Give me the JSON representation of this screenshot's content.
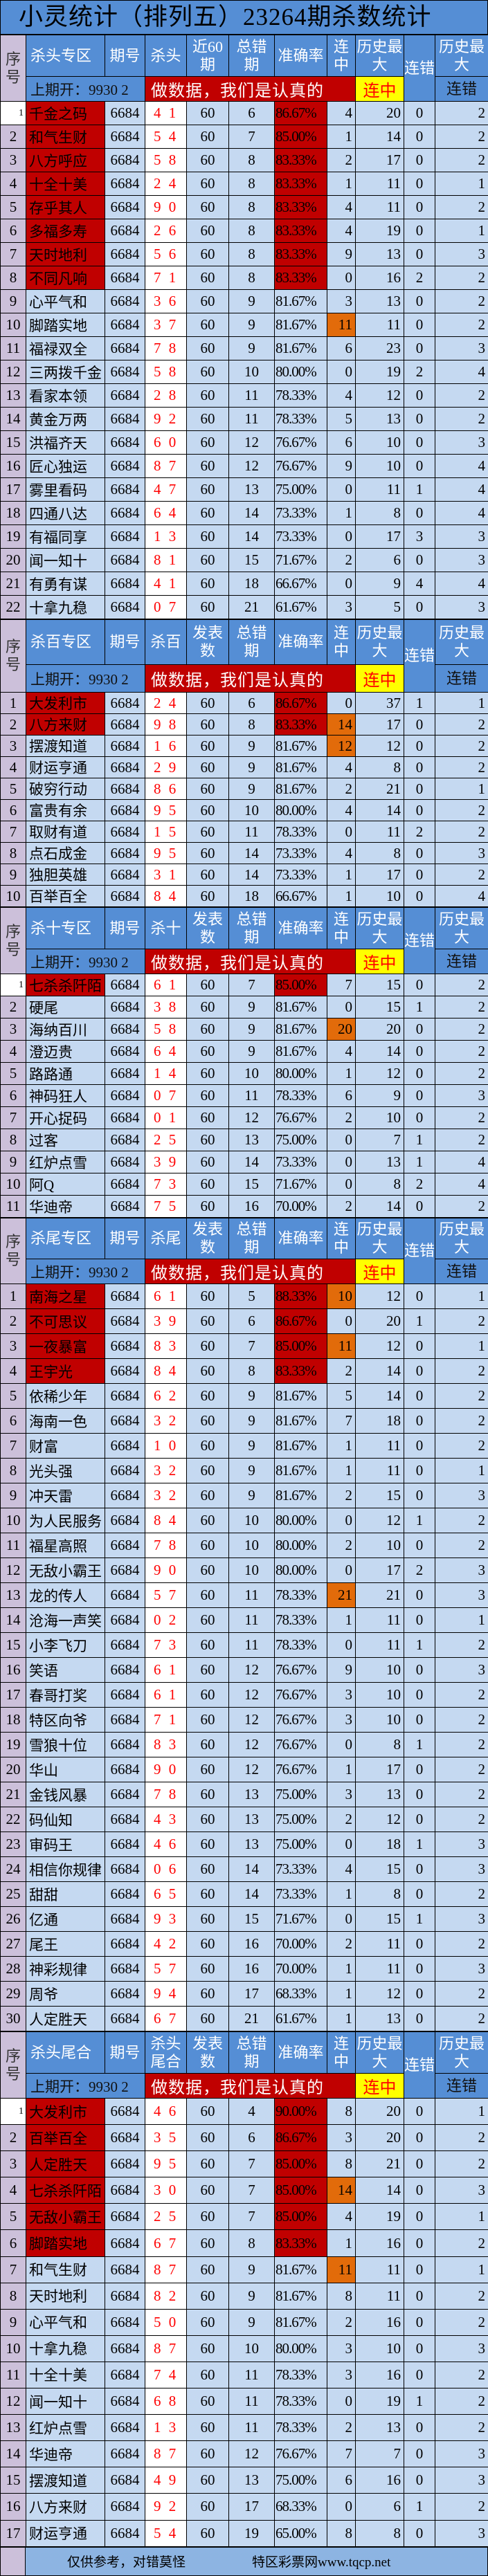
{
  "title": "小灵统计（排列五）23264期杀数统计",
  "colors": {
    "header": "#558ED5",
    "seq": "#CCC0DA",
    "cell": "#C5D9F1",
    "top": "#C00000",
    "streak": "#E26B0A",
    "badge": "#FFFF00",
    "footer": "#8DB4E2"
  },
  "common": {
    "seq_label": "序号",
    "issue_label": "期号",
    "errors_label": "总错期",
    "accuracy_label": "准确率",
    "streak_label": "连中",
    "history_max_label": "历史最大",
    "miss_label": "连错",
    "prev_draw": "上期开：9930 2",
    "banner": "做数据，我们是认真的",
    "badge": "连中",
    "miss_max_sub": "连错"
  },
  "sections": [
    {
      "title": "杀头专区",
      "kill_label": "杀头",
      "count_label": "近60期",
      "hot_rows": [
        10
      ],
      "rows": [
        [
          "1",
          "千金之码",
          "6684",
          "4 1",
          "60",
          "6",
          "86.67%",
          "4",
          "20",
          "0",
          "2"
        ],
        [
          "2",
          "和气生财",
          "6684",
          "5 4",
          "60",
          "7",
          "85.00%",
          "1",
          "14",
          "0",
          "2"
        ],
        [
          "3",
          "八方呼应",
          "6684",
          "5 8",
          "60",
          "8",
          "83.33%",
          "2",
          "17",
          "0",
          "2"
        ],
        [
          "4",
          "十全十美",
          "6684",
          "2 4",
          "60",
          "8",
          "83.33%",
          "1",
          "11",
          "0",
          "1"
        ],
        [
          "5",
          "存乎其人",
          "6684",
          "9 0",
          "60",
          "8",
          "83.33%",
          "4",
          "11",
          "0",
          "2"
        ],
        [
          "6",
          "多福多寿",
          "6684",
          "2 6",
          "60",
          "8",
          "83.33%",
          "4",
          "19",
          "0",
          "1"
        ],
        [
          "7",
          "天时地利",
          "6684",
          "5 6",
          "60",
          "8",
          "83.33%",
          "9",
          "13",
          "0",
          "3"
        ],
        [
          "8",
          "不同凡响",
          "6684",
          "7 1",
          "60",
          "8",
          "83.33%",
          "0",
          "16",
          "2",
          "2"
        ],
        [
          "9",
          "心平气和",
          "6684",
          "3 6",
          "60",
          "9",
          "81.67%",
          "3",
          "13",
          "0",
          "2"
        ],
        [
          "10",
          "脚踏实地",
          "6684",
          "3 7",
          "60",
          "9",
          "81.67%",
          "11",
          "11",
          "0",
          "2"
        ],
        [
          "11",
          "福禄双全",
          "6684",
          "7 8",
          "60",
          "9",
          "81.67%",
          "6",
          "23",
          "0",
          "3"
        ],
        [
          "12",
          "三两拨千金",
          "6684",
          "5 8",
          "60",
          "10",
          "80.00%",
          "0",
          "19",
          "2",
          "4"
        ],
        [
          "13",
          "看家本领",
          "6684",
          "2 8",
          "60",
          "11",
          "78.33%",
          "4",
          "12",
          "0",
          "2"
        ],
        [
          "14",
          "黄金万两",
          "6684",
          "9 2",
          "60",
          "11",
          "78.33%",
          "5",
          "13",
          "0",
          "2"
        ],
        [
          "15",
          "洪福齐天",
          "6684",
          "6 0",
          "60",
          "12",
          "76.67%",
          "6",
          "10",
          "0",
          "3"
        ],
        [
          "16",
          "匠心独运",
          "6684",
          "8 7",
          "60",
          "12",
          "76.67%",
          "9",
          "10",
          "0",
          "4"
        ],
        [
          "17",
          "雾里看码",
          "6684",
          "4 7",
          "60",
          "13",
          "75.00%",
          "0",
          "11",
          "1",
          "4"
        ],
        [
          "18",
          "四通八达",
          "6684",
          "6 4",
          "60",
          "14",
          "73.33%",
          "1",
          "8",
          "0",
          "4"
        ],
        [
          "19",
          "有福同享",
          "6684",
          "1 3",
          "60",
          "14",
          "73.33%",
          "0",
          "17",
          "3",
          "3"
        ],
        [
          "20",
          "闻一知十",
          "6684",
          "8 1",
          "60",
          "15",
          "71.67%",
          "2",
          "6",
          "0",
          "3"
        ],
        [
          "21",
          "有勇有谋",
          "6684",
          "4 1",
          "60",
          "18",
          "66.67%",
          "0",
          "9",
          "4",
          "4"
        ],
        [
          "22",
          "十拿九稳",
          "6684",
          "0 7",
          "60",
          "21",
          "61.67%",
          "3",
          "5",
          "0",
          "3"
        ]
      ]
    },
    {
      "title": "杀百专区",
      "kill_label": "杀百",
      "count_label": "发表数",
      "hot_rows": [
        2,
        3
      ],
      "rows": [
        [
          "1",
          "大发利市",
          "6684",
          "2 4",
          "60",
          "6",
          "86.67%",
          "0",
          "37",
          "1",
          "1"
        ],
        [
          "2",
          "八方来财",
          "6684",
          "9 8",
          "60",
          "8",
          "83.33%",
          "14",
          "17",
          "0",
          "2"
        ],
        [
          "3",
          "摆渡知道",
          "6684",
          "1 6",
          "60",
          "9",
          "81.67%",
          "12",
          "12",
          "0",
          "2"
        ],
        [
          "4",
          "财运亨通",
          "6684",
          "2 9",
          "60",
          "9",
          "81.67%",
          "4",
          "8",
          "0",
          "2"
        ],
        [
          "5",
          "破穷行动",
          "6684",
          "8 6",
          "60",
          "9",
          "81.67%",
          "2",
          "21",
          "0",
          "1"
        ],
        [
          "6",
          "富贵有余",
          "6684",
          "9 5",
          "60",
          "10",
          "80.00%",
          "4",
          "14",
          "0",
          "2"
        ],
        [
          "7",
          "取财有道",
          "6684",
          "1 5",
          "60",
          "11",
          "78.33%",
          "0",
          "11",
          "2",
          "2"
        ],
        [
          "8",
          "点石成金",
          "6684",
          "9 5",
          "60",
          "14",
          "73.33%",
          "4",
          "8",
          "0",
          "3"
        ],
        [
          "9",
          "独胆英雄",
          "6684",
          "3 1",
          "60",
          "14",
          "73.33%",
          "1",
          "17",
          "0",
          "2"
        ],
        [
          "10",
          "百举百全",
          "6684",
          "8 4",
          "60",
          "18",
          "66.67%",
          "1",
          "10",
          "0",
          "4"
        ]
      ]
    },
    {
      "title": "杀十专区",
      "kill_label": "杀十",
      "count_label": "发表数",
      "hot_rows": [
        3
      ],
      "rows": [
        [
          "1",
          "七杀杀阡陌",
          "6684",
          "6 1",
          "60",
          "7",
          "85.00%",
          "7",
          "15",
          "0",
          "2"
        ],
        [
          "2",
          "硬尾",
          "6684",
          "3 8",
          "60",
          "9",
          "81.67%",
          "0",
          "15",
          "1",
          "2"
        ],
        [
          "3",
          "海纳百川",
          "6684",
          "5 8",
          "60",
          "9",
          "81.67%",
          "20",
          "20",
          "0",
          "2"
        ],
        [
          "4",
          "澄迈贵",
          "6684",
          "6 4",
          "60",
          "9",
          "81.67%",
          "4",
          "14",
          "0",
          "2"
        ],
        [
          "5",
          "路路通",
          "6684",
          "1 4",
          "60",
          "10",
          "80.00%",
          "1",
          "12",
          "0",
          "2"
        ],
        [
          "6",
          "神码狂人",
          "6684",
          "0 7",
          "60",
          "11",
          "78.33%",
          "6",
          "9",
          "0",
          "3"
        ],
        [
          "7",
          "开心捉码",
          "6684",
          "0 1",
          "60",
          "12",
          "76.67%",
          "2",
          "10",
          "0",
          "2"
        ],
        [
          "8",
          "过客",
          "6684",
          "2 5",
          "60",
          "13",
          "75.00%",
          "0",
          "7",
          "1",
          "2"
        ],
        [
          "9",
          "红炉点雪",
          "6684",
          "3 9",
          "60",
          "14",
          "73.33%",
          "0",
          "13",
          "1",
          "4"
        ],
        [
          "10",
          "阿Q",
          "6684",
          "7 3",
          "60",
          "15",
          "71.67%",
          "0",
          "8",
          "2",
          "4"
        ],
        [
          "11",
          "华迪帝",
          "6684",
          "7 5",
          "60",
          "16",
          "70.00%",
          "2",
          "14",
          "0",
          "2"
        ]
      ]
    },
    {
      "title": "杀尾专区",
      "kill_label": "杀尾",
      "count_label": "发表数",
      "hot_rows": [
        1,
        3,
        13
      ],
      "rows": [
        [
          "1",
          "南海之星",
          "6684",
          "6 1",
          "60",
          "5",
          "88.33%",
          "10",
          "12",
          "0",
          "1"
        ],
        [
          "2",
          "不可思议",
          "6684",
          "3 9",
          "60",
          "6",
          "86.67%",
          "0",
          "20",
          "1",
          "2"
        ],
        [
          "3",
          "一夜暴富",
          "6684",
          "8 3",
          "60",
          "7",
          "85.00%",
          "11",
          "12",
          "0",
          "1"
        ],
        [
          "4",
          "王宇光",
          "6684",
          "8 4",
          "60",
          "8",
          "83.33%",
          "2",
          "14",
          "0",
          "2"
        ],
        [
          "5",
          "依稀少年",
          "6684",
          "6 2",
          "60",
          "9",
          "81.67%",
          "5",
          "14",
          "0",
          "2"
        ],
        [
          "6",
          "海南一色",
          "6684",
          "3 2",
          "60",
          "9",
          "81.67%",
          "7",
          "18",
          "0",
          "2"
        ],
        [
          "7",
          "财富",
          "6684",
          "1 0",
          "60",
          "9",
          "81.67%",
          "1",
          "11",
          "0",
          "2"
        ],
        [
          "8",
          "光头强",
          "6684",
          "3 2",
          "60",
          "9",
          "81.67%",
          "1",
          "11",
          "0",
          "1"
        ],
        [
          "9",
          "冲天雷",
          "6684",
          "3 2",
          "60",
          "9",
          "81.67%",
          "2",
          "15",
          "0",
          "3"
        ],
        [
          "10",
          "为人民服务",
          "6684",
          "8 4",
          "60",
          "10",
          "80.00%",
          "0",
          "12",
          "1",
          "2"
        ],
        [
          "11",
          "福星高照",
          "6684",
          "7 8",
          "60",
          "10",
          "80.00%",
          "2",
          "10",
          "0",
          "2"
        ],
        [
          "12",
          "无敌小霸王",
          "6684",
          "9 0",
          "60",
          "10",
          "80.00%",
          "0",
          "17",
          "2",
          "3"
        ],
        [
          "13",
          "龙的传人",
          "6684",
          "5 7",
          "60",
          "11",
          "78.33%",
          "21",
          "21",
          "0",
          "3"
        ],
        [
          "14",
          "沧海一声笑",
          "6684",
          "0 2",
          "60",
          "11",
          "78.33%",
          "1",
          "11",
          "0",
          "1"
        ],
        [
          "15",
          "小李飞刀",
          "6684",
          "7 3",
          "60",
          "11",
          "78.33%",
          "0",
          "11",
          "1",
          "2"
        ],
        [
          "16",
          "笑语",
          "6684",
          "6 1",
          "60",
          "12",
          "76.67%",
          "9",
          "10",
          "0",
          "3"
        ],
        [
          "17",
          "春哥打奖",
          "6684",
          "6 1",
          "60",
          "12",
          "76.67%",
          "3",
          "10",
          "0",
          "2"
        ],
        [
          "18",
          "特区向爷",
          "6684",
          "7 1",
          "60",
          "12",
          "76.67%",
          "3",
          "10",
          "0",
          "2"
        ],
        [
          "19",
          "雪狼十位",
          "6684",
          "8 3",
          "60",
          "12",
          "76.67%",
          "0",
          "8",
          "1",
          "2"
        ],
        [
          "20",
          "华山",
          "6684",
          "9 0",
          "60",
          "12",
          "76.67%",
          "1",
          "17",
          "0",
          "2"
        ],
        [
          "21",
          "金钱风暴",
          "6684",
          "7 8",
          "60",
          "13",
          "75.00%",
          "3",
          "13",
          "0",
          "2"
        ],
        [
          "22",
          "码仙知",
          "6684",
          "4 3",
          "60",
          "13",
          "75.00%",
          "2",
          "12",
          "0",
          "2"
        ],
        [
          "23",
          "审码王",
          "6684",
          "4 6",
          "60",
          "13",
          "75.00%",
          "0",
          "18",
          "1",
          "3"
        ],
        [
          "24",
          "相信你规律",
          "6684",
          "0 6",
          "60",
          "14",
          "73.33%",
          "4",
          "15",
          "0",
          "3"
        ],
        [
          "25",
          "甜甜",
          "6684",
          "6 5",
          "60",
          "14",
          "73.33%",
          "1",
          "8",
          "0",
          "2"
        ],
        [
          "26",
          "亿通",
          "6684",
          "9 3",
          "60",
          "15",
          "71.67%",
          "0",
          "15",
          "1",
          "3"
        ],
        [
          "27",
          "尾王",
          "6684",
          "4 2",
          "60",
          "16",
          "70.00%",
          "2",
          "11",
          "0",
          "2"
        ],
        [
          "28",
          "神彩规律",
          "6684",
          "5 7",
          "60",
          "16",
          "70.00%",
          "1",
          "11",
          "0",
          "3"
        ],
        [
          "29",
          "周爷",
          "6684",
          "9 4",
          "60",
          "17",
          "68.33%",
          "1",
          "12",
          "0",
          "2"
        ],
        [
          "30",
          "人定胜天",
          "6684",
          "6 7",
          "60",
          "21",
          "61.67%",
          "1",
          "13",
          "0",
          "2"
        ]
      ]
    },
    {
      "title": "杀头尾合",
      "kill_label": "杀头尾合",
      "count_label": "发表数",
      "hot_rows": [
        4,
        7
      ],
      "rows": [
        [
          "1",
          "大发利市",
          "6684",
          "4 6",
          "60",
          "4",
          "90.00%",
          "8",
          "20",
          "0",
          "1"
        ],
        [
          "2",
          "百举百全",
          "6684",
          "3 5",
          "60",
          "6",
          "86.67%",
          "3",
          "20",
          "0",
          "2"
        ],
        [
          "3",
          "人定胜天",
          "6684",
          "9 5",
          "60",
          "7",
          "85.00%",
          "8",
          "21",
          "0",
          "2"
        ],
        [
          "4",
          "七杀杀阡陌",
          "6684",
          "3 0",
          "60",
          "7",
          "85.00%",
          "14",
          "14",
          "0",
          "3"
        ],
        [
          "5",
          "无敌小霸王",
          "6684",
          "2 5",
          "60",
          "7",
          "85.00%",
          "4",
          "19",
          "0",
          "1"
        ],
        [
          "6",
          "脚踏实地",
          "6684",
          "6 7",
          "60",
          "8",
          "83.33%",
          "1",
          "16",
          "0",
          "2"
        ],
        [
          "7",
          "和气生财",
          "6684",
          "8 7",
          "60",
          "9",
          "81.67%",
          "11",
          "11",
          "0",
          "1"
        ],
        [
          "8",
          "天时地利",
          "6684",
          "8 2",
          "60",
          "9",
          "81.67%",
          "8",
          "11",
          "0",
          "2"
        ],
        [
          "9",
          "心平气和",
          "6684",
          "5 0",
          "60",
          "9",
          "81.67%",
          "2",
          "16",
          "0",
          "2"
        ],
        [
          "10",
          "十拿九稳",
          "6684",
          "8 7",
          "60",
          "10",
          "80.00%",
          "3",
          "10",
          "0",
          "3"
        ],
        [
          "11",
          "十全十美",
          "6684",
          "7 4",
          "60",
          "11",
          "78.33%",
          "3",
          "16",
          "0",
          "2"
        ],
        [
          "12",
          "闻一知十",
          "6684",
          "6 8",
          "60",
          "11",
          "78.33%",
          "0",
          "19",
          "1",
          "2"
        ],
        [
          "13",
          "红炉点雪",
          "6684",
          "1 3",
          "60",
          "11",
          "78.33%",
          "2",
          "13",
          "0",
          "2"
        ],
        [
          "14",
          "华迪帝",
          "6684",
          "8 7",
          "60",
          "12",
          "76.67%",
          "7",
          "7",
          "0",
          "3"
        ],
        [
          "15",
          "摆渡知道",
          "6684",
          "4 9",
          "60",
          "13",
          "75.00%",
          "6",
          "16",
          "0",
          "3"
        ],
        [
          "16",
          "八方来财",
          "6684",
          "9 2",
          "60",
          "17",
          "68.33%",
          "0",
          "6",
          "1",
          "2"
        ],
        [
          "17",
          "财运亨通",
          "6684",
          "5 4",
          "60",
          "19",
          "65.00%",
          "8",
          "8",
          "0",
          "3"
        ]
      ]
    }
  ],
  "footer": {
    "note": "仅供参考，对错莫怪",
    "site": "特区彩票网www.tqcp.net"
  }
}
